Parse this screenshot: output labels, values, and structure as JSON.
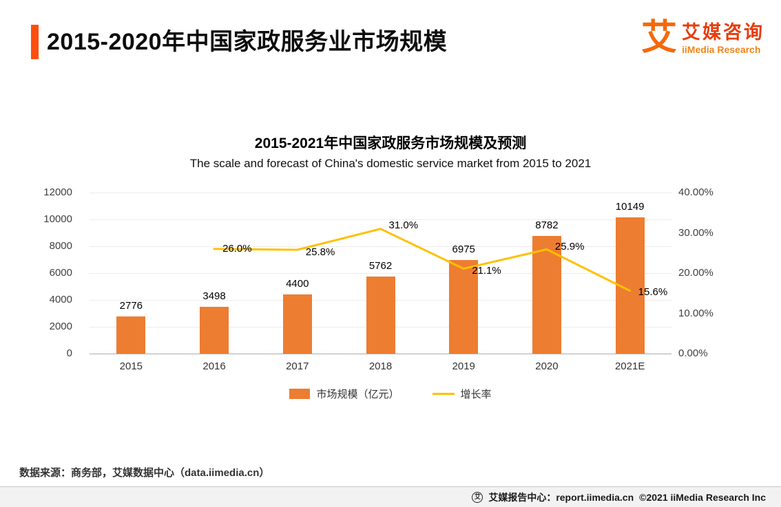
{
  "page": {
    "title": "2015-2020年中国家政服务业市场规模",
    "source_note": "数据来源：商务部，艾媒数据中心（data.iimedia.cn）"
  },
  "logo": {
    "mark": "艾",
    "name_cn": "艾媒咨询",
    "name_en": "iiMedia Research"
  },
  "footer": {
    "icon_glyph": "艾",
    "report_center": "艾媒报告中心：report.iimedia.cn",
    "copyright": "©2021  iiMedia Research Inc"
  },
  "chart_data": {
    "type": "bar+line",
    "title": "2015-2021年中国家政服务市场规模及预测",
    "subtitle": "The scale and forecast of China's domestic service market from 2015 to 2021",
    "categories": [
      "2015",
      "2016",
      "2017",
      "2018",
      "2019",
      "2020",
      "2021E"
    ],
    "series": [
      {
        "name": "市场规模（亿元）",
        "type": "bar",
        "axis": "left",
        "color": "#ED7D31",
        "values": [
          2776,
          3498,
          4400,
          5762,
          6975,
          8782,
          10149
        ]
      },
      {
        "name": "增长率",
        "type": "line",
        "axis": "right",
        "color": "#FFC000",
        "values": [
          null,
          26.0,
          25.8,
          31.0,
          21.1,
          25.9,
          15.6
        ],
        "labels": [
          null,
          "26.0%",
          "25.8%",
          "31.0%",
          "21.1%",
          "25.9%",
          "15.6%"
        ]
      }
    ],
    "left_axis": {
      "min": 0,
      "max": 12000,
      "ticks": [
        "12000",
        "10000",
        "8000",
        "6000",
        "4000",
        "2000",
        "0"
      ]
    },
    "right_axis": {
      "min": 0,
      "max": 40,
      "ticks": [
        "40.00%",
        "30.00%",
        "20.00%",
        "10.00%",
        "0.00%"
      ]
    },
    "legend_position": "bottom",
    "grid": true
  }
}
